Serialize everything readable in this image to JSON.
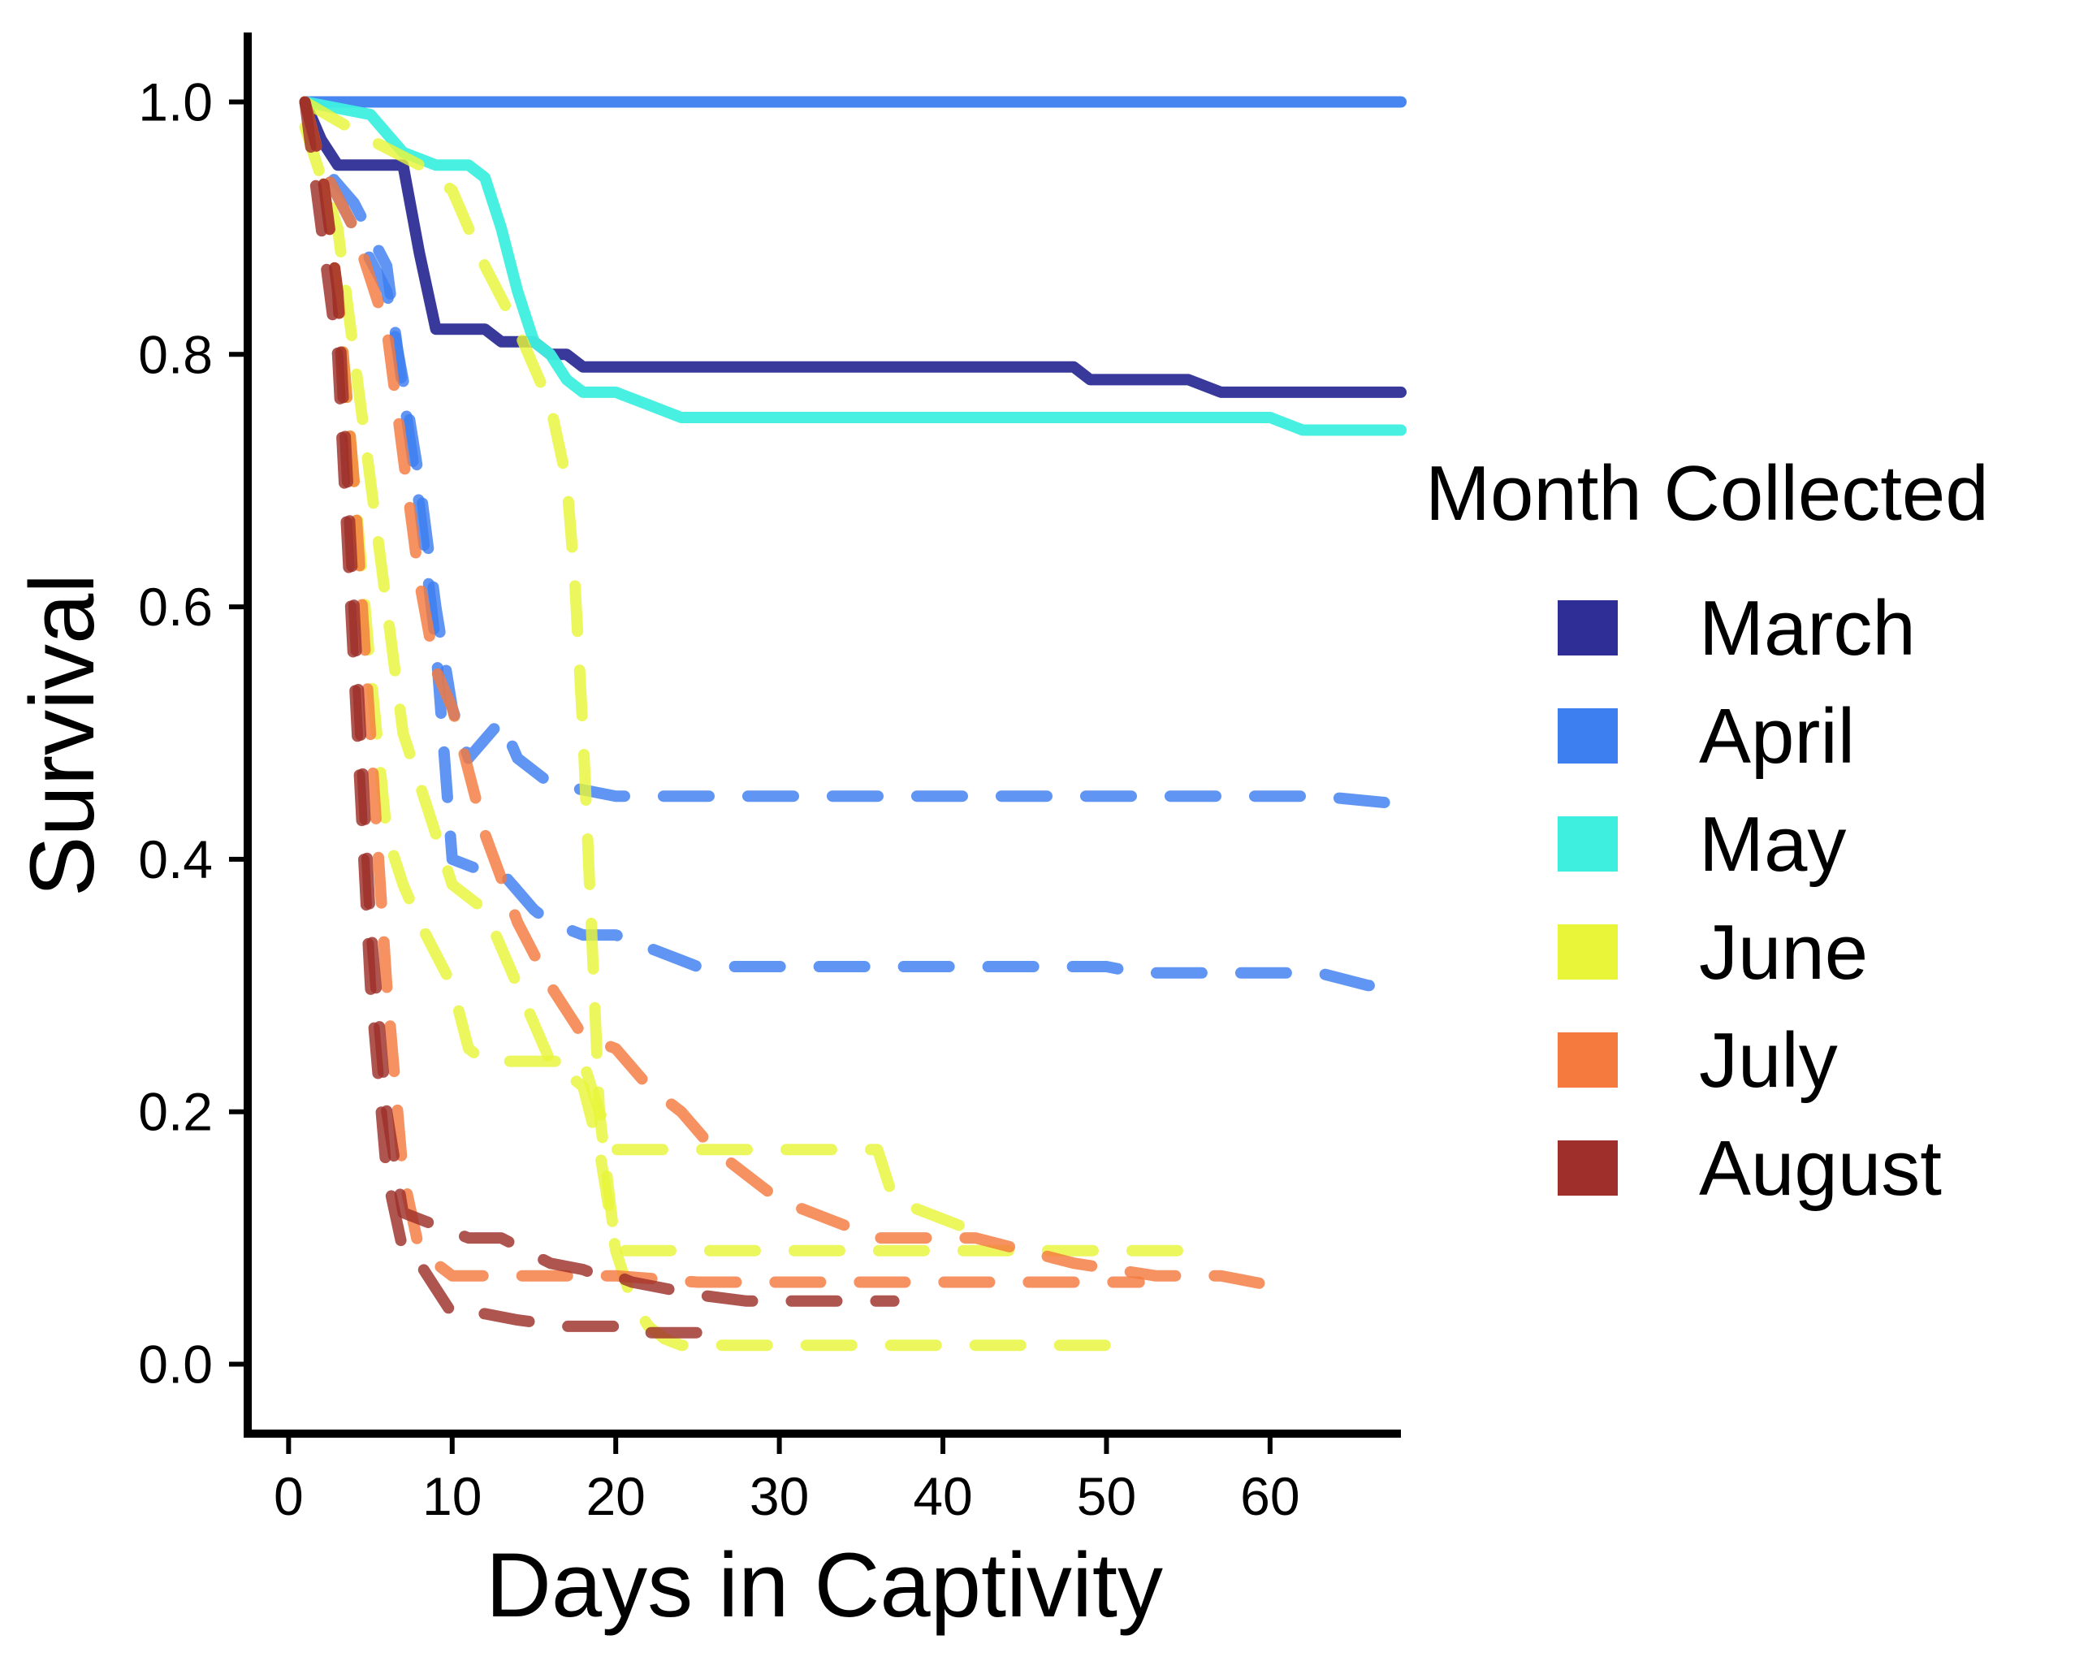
{
  "chart_data": {
    "type": "line",
    "title": "",
    "xlabel": "Days in Captivity",
    "ylabel": "Survival",
    "xlim": [
      -2.5,
      68
    ],
    "ylim": [
      -0.055,
      1.055
    ],
    "xticks": [
      0,
      10,
      20,
      30,
      40,
      50,
      60
    ],
    "xtick_labels": [
      "0",
      "10",
      "20",
      "30",
      "40",
      "50",
      "60"
    ],
    "yticks": [
      0.0,
      0.2,
      0.4,
      0.6,
      0.8,
      1.0
    ],
    "ytick_labels": [
      "0.0",
      "0.2",
      "0.4",
      "0.6",
      "0.8",
      "1.0"
    ],
    "grid": false,
    "legend": {
      "title": "Month Collected",
      "position": "right",
      "entries": [
        {
          "label": "March",
          "color": "#2E2E96"
        },
        {
          "label": "April",
          "color": "#3D7EF0"
        },
        {
          "label": "May",
          "color": "#3EEFDF"
        },
        {
          "label": "June",
          "color": "#E8F539"
        },
        {
          "label": "July",
          "color": "#F47A3E"
        },
        {
          "label": "August",
          "color": "#9E2F2A"
        }
      ]
    },
    "series": [
      {
        "name": "March",
        "style": "solid",
        "color": "#2E2E96",
        "x": [
          1,
          2,
          3,
          4,
          5,
          6,
          7,
          8,
          9,
          12,
          13,
          15,
          16,
          17,
          18,
          45,
          48,
          49,
          50,
          55,
          57,
          68
        ],
        "y": [
          1.0,
          0.97,
          0.95,
          0.95,
          0.95,
          0.95,
          0.95,
          0.88,
          0.82,
          0.82,
          0.81,
          0.81,
          0.8,
          0.8,
          0.79,
          0.79,
          0.79,
          0.78,
          0.78,
          0.78,
          0.77,
          0.77
        ]
      },
      {
        "name": "April",
        "style": "solid",
        "color": "#3D7EF0",
        "x": [
          1,
          68
        ],
        "y": [
          1.0,
          1.0
        ]
      },
      {
        "name": "May",
        "style": "solid",
        "color": "#3EEFDF",
        "x": [
          1,
          5,
          7,
          9,
          11,
          12,
          13,
          14,
          15,
          16,
          17,
          18,
          20,
          22,
          24,
          60,
          62,
          68
        ],
        "y": [
          1.0,
          0.99,
          0.96,
          0.95,
          0.95,
          0.94,
          0.9,
          0.85,
          0.81,
          0.8,
          0.78,
          0.77,
          0.77,
          0.76,
          0.75,
          0.75,
          0.74,
          0.74
        ]
      },
      {
        "name": "April",
        "style": "dashed",
        "color": "#3D7EF0",
        "x": [
          1,
          2,
          4,
          6,
          7,
          8,
          9,
          10,
          11,
          13,
          14,
          16,
          18,
          20,
          63,
          67,
          68
        ],
        "y": [
          1.0,
          0.95,
          0.9,
          0.85,
          0.78,
          0.7,
          0.6,
          0.52,
          0.48,
          0.51,
          0.48,
          0.46,
          0.455,
          0.45,
          0.45,
          0.445,
          0.445
        ]
      },
      {
        "name": "April",
        "style": "dashed",
        "color": "#3D7EF0",
        "x": [
          1,
          2,
          4,
          6,
          7,
          8,
          9,
          10,
          12,
          13,
          15,
          16,
          18,
          20,
          24,
          25,
          50,
          52,
          63,
          66,
          68
        ],
        "y": [
          1.0,
          0.95,
          0.92,
          0.87,
          0.77,
          0.68,
          0.57,
          0.4,
          0.39,
          0.39,
          0.36,
          0.35,
          0.34,
          0.34,
          0.32,
          0.315,
          0.315,
          0.31,
          0.31,
          0.3,
          0.3
        ]
      },
      {
        "name": "June",
        "style": "dashed",
        "color": "#E8F539",
        "x": [
          1,
          5,
          8,
          10,
          12,
          14,
          16,
          17,
          17.5,
          18,
          18.5,
          19,
          20,
          30,
          35,
          56
        ],
        "y": [
          1.0,
          0.97,
          0.95,
          0.93,
          0.87,
          0.82,
          0.76,
          0.7,
          0.62,
          0.5,
          0.35,
          0.2,
          0.09,
          0.09,
          0.09,
          0.09
        ]
      },
      {
        "name": "June",
        "style": "dashed",
        "color": "#E8F539",
        "x": [
          1,
          2,
          3,
          4,
          5,
          6,
          7,
          8,
          10,
          11,
          12,
          13,
          18,
          19,
          20,
          36,
          37,
          41,
          42,
          43
        ],
        "y": [
          1.0,
          0.95,
          0.85,
          0.7,
          0.55,
          0.42,
          0.38,
          0.35,
          0.3,
          0.25,
          0.24,
          0.24,
          0.24,
          0.2,
          0.17,
          0.17,
          0.13,
          0.11,
          0.1,
          0.1
        ]
      },
      {
        "name": "June",
        "style": "dashed",
        "color": "#E8F539",
        "x": [
          1,
          3,
          5,
          7,
          10,
          12,
          14,
          16,
          18,
          19,
          20,
          21,
          22,
          23,
          24,
          52
        ],
        "y": [
          0.98,
          0.9,
          0.7,
          0.5,
          0.38,
          0.36,
          0.3,
          0.24,
          0.22,
          0.17,
          0.09,
          0.05,
          0.03,
          0.02,
          0.015,
          0.015
        ]
      },
      {
        "name": "July",
        "style": "dashed",
        "color": "#F47A3E",
        "x": [
          1,
          2,
          4,
          6,
          7,
          8,
          9,
          10,
          11,
          12,
          14,
          16,
          18,
          20,
          22,
          24,
          26,
          28,
          30,
          32,
          34,
          36,
          38,
          42,
          48,
          53,
          57,
          59,
          61
        ],
        "y": [
          1.0,
          0.95,
          0.9,
          0.82,
          0.72,
          0.62,
          0.55,
          0.52,
          0.47,
          0.42,
          0.35,
          0.3,
          0.26,
          0.25,
          0.22,
          0.2,
          0.17,
          0.15,
          0.13,
          0.12,
          0.11,
          0.1,
          0.1,
          0.1,
          0.08,
          0.07,
          0.07,
          0.065,
          0.06
        ]
      },
      {
        "name": "July",
        "style": "dashed",
        "color": "#F47A3E",
        "x": [
          1,
          2,
          3,
          4,
          5,
          6,
          7,
          8,
          9,
          10,
          20,
          25,
          35,
          52
        ],
        "y": [
          1.0,
          0.95,
          0.85,
          0.7,
          0.5,
          0.3,
          0.15,
          0.09,
          0.08,
          0.07,
          0.07,
          0.065,
          0.065,
          0.065
        ]
      },
      {
        "name": "August",
        "style": "dashed",
        "color": "#9E2F2A",
        "x": [
          1,
          2,
          3,
          4,
          5,
          6,
          7,
          9,
          11,
          13,
          16,
          18,
          19,
          20,
          21,
          23,
          25,
          28,
          30,
          37
        ],
        "y": [
          1.0,
          0.95,
          0.85,
          0.6,
          0.35,
          0.2,
          0.12,
          0.11,
          0.1,
          0.1,
          0.08,
          0.075,
          0.07,
          0.07,
          0.065,
          0.06,
          0.055,
          0.05,
          0.05,
          0.05
        ]
      },
      {
        "name": "August",
        "style": "dashed",
        "color": "#9E2F2A",
        "x": [
          1,
          2,
          3,
          4,
          5,
          6,
          7,
          8,
          9,
          10,
          12,
          14,
          17,
          20,
          21,
          22,
          23,
          26
        ],
        "y": [
          1.0,
          0.9,
          0.8,
          0.55,
          0.3,
          0.15,
          0.09,
          0.08,
          0.06,
          0.04,
          0.04,
          0.035,
          0.03,
          0.03,
          0.025,
          0.025,
          0.025,
          0.025
        ]
      }
    ]
  }
}
